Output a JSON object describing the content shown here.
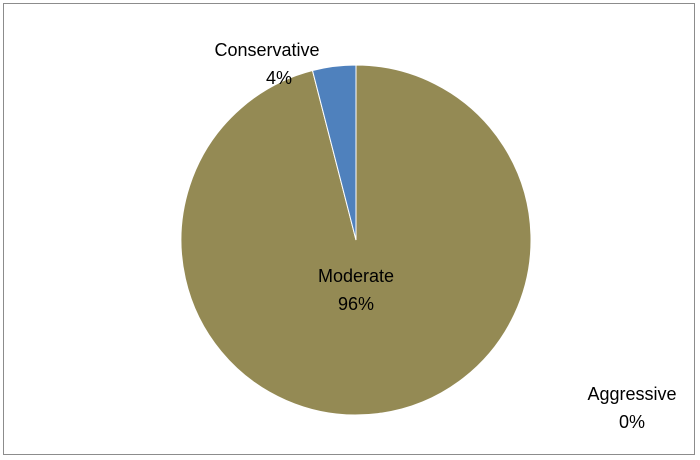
{
  "chart_data": {
    "type": "pie",
    "title": "",
    "legend": "none",
    "start_angle_deg": 0,
    "direction": "clockwise",
    "slices": [
      {
        "label": "Moderate",
        "value": 96,
        "value_label": "96%",
        "color": "#948a54"
      },
      {
        "label": "Aggressive",
        "value": 0,
        "value_label": "0%",
        "color": "#9bbb59"
      },
      {
        "label": "Conservative",
        "value": 4,
        "value_label": "4%",
        "color": "#4f81bd"
      }
    ]
  }
}
